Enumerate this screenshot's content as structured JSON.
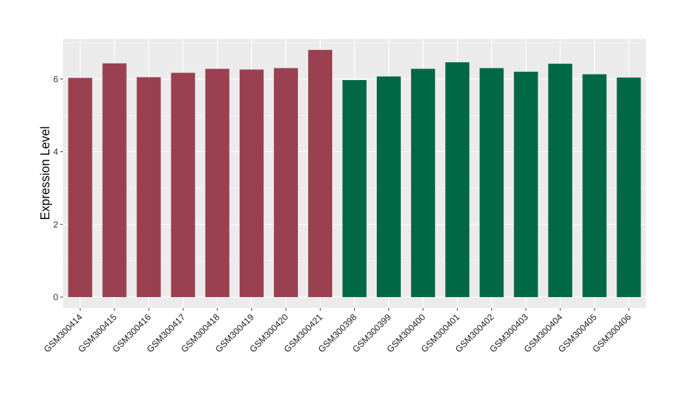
{
  "chart_data": {
    "type": "bar",
    "ylabel": "Expression Level",
    "xlabel": "",
    "ylim": [
      -0.3,
      7.1
    ],
    "yticks": [
      0,
      2,
      4,
      6
    ],
    "grid": true,
    "background": "#EBEBEB",
    "categories": [
      "GSM300414",
      "GSM300415",
      "GSM300416",
      "GSM300417",
      "GSM300418",
      "GSM300419",
      "GSM300420",
      "GSM300421",
      "GSM300398",
      "GSM300399",
      "GSM300400",
      "GSM300401",
      "GSM300402",
      "GSM300403",
      "GSM300404",
      "GSM300405",
      "GSM300406"
    ],
    "values": [
      6.03,
      6.43,
      6.05,
      6.17,
      6.28,
      6.26,
      6.3,
      6.8,
      5.97,
      6.07,
      6.28,
      6.46,
      6.3,
      6.2,
      6.42,
      6.13,
      6.04
    ],
    "groups": [
      0,
      0,
      0,
      0,
      0,
      0,
      0,
      0,
      1,
      1,
      1,
      1,
      1,
      1,
      1,
      1,
      1
    ],
    "colors": [
      "#9A4050",
      "#006845"
    ]
  }
}
